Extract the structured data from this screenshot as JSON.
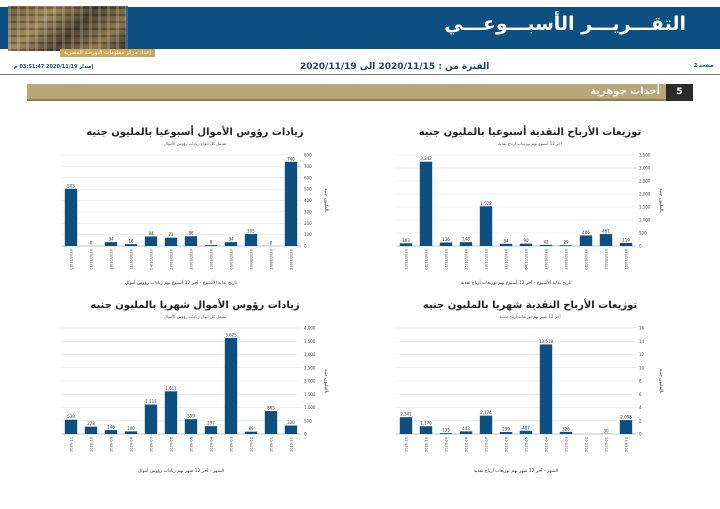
{
  "header": {
    "title": "التقـــريـــر الأسبـــوعـــي",
    "subtitle": "إعداد مركز معلومات البورصة المصرية",
    "page_label": "صفحة 2",
    "period": "الفترة من : 2020/11/15 الى 2020/11/19",
    "issued": "إصدار 2020/11/19 03:51:47 م"
  },
  "section": {
    "number": "5",
    "title": "أحداث جوهرية"
  },
  "chart_data": [
    {
      "id": "dividends-weekly",
      "type": "bar",
      "title": "توزيعات الأرباح النقدية أسبوعيا بالمليون جنيه",
      "subtitle": "آخر 12 أسبوع بهم توزيعات أرباح نقدية",
      "xlabel": "تاريخ بداية الأسبوع - آخر 12 أسبوع بهم توزيعات أرباح نقدية",
      "ylabel": "بالمليون جنيه",
      "ylim": [
        0,
        3500
      ],
      "yticks": [
        0,
        500,
        1000,
        1500,
        2000,
        2500,
        3000,
        3500
      ],
      "yticklabels": [
        "0",
        "500",
        "1,000",
        "1,500",
        "2,000",
        "2,500",
        "3,000",
        "3,500"
      ],
      "categories": [
        "13/11/2020",
        "06/11/2020",
        "01/11/2020",
        "25/10/2020",
        "18/10/2020",
        "11/10/2020",
        "04/10/2020",
        "27/09/2020",
        "20/09/2020",
        "06/09/2020",
        "30/08/2020",
        "16/07/2020"
      ],
      "values": [
        103,
        3242,
        136,
        148,
        1528,
        84,
        90,
        42,
        29,
        406,
        461,
        119
      ],
      "labels": [
        "103",
        "3,242",
        "136",
        "148",
        "1,528",
        "84",
        "90",
        "42",
        "29",
        "406",
        "461",
        "119"
      ],
      "y_axis_side": "right",
      "grid": true
    },
    {
      "id": "capital-weekly",
      "type": "bar",
      "title": "زيادات رؤوس الأموال أسبوعيا بالمليون جنيه",
      "subtitle": "تشمل كل أنواع زيادات رؤوس الأموال",
      "xlabel": "تاريخ بداية الأسبوع - آخر 12 أسبوع بهم زيادات رؤوس أموال",
      "ylabel": "بالمليون جنيه",
      "ylim": [
        0,
        800
      ],
      "yticks": [
        0,
        100,
        200,
        300,
        400,
        500,
        600,
        700,
        800
      ],
      "yticklabels": [
        "0",
        "100",
        "200",
        "300",
        "400",
        "500",
        "600",
        "700",
        "800"
      ],
      "categories": [
        "08/11/2020",
        "01/11/2020",
        "18/10/2020",
        "11/10/2020",
        "04/10/2020",
        "27/09/2020",
        "20/09/2020",
        "13/09/2020",
        "06/09/2020",
        "23/08/2020",
        "16/08/2020",
        "20/07/2020"
      ],
      "values": [
        503,
        0,
        34,
        16,
        84,
        73,
        86,
        8,
        34,
        105,
        0,
        740
      ],
      "labels": [
        "503",
        "0",
        "34",
        "16",
        "84",
        "73",
        "86",
        "8",
        "34",
        "105",
        "0",
        "740"
      ],
      "y_axis_side": "right",
      "grid": true
    },
    {
      "id": "dividends-monthly",
      "type": "bar",
      "title": "توزيعات الأرباح النقدية شهريا بالمليون جنيه",
      "subtitle": "آخر 12 شهر بهم توزيعات أرباح نقدية",
      "xlabel": "الشهر - آخر 12 شهر بهم توزيعات أرباح نقدية",
      "ylabel": "بالمليون جنيه",
      "ylim": [
        0,
        16
      ],
      "yticks": [
        0,
        2,
        4,
        6,
        8,
        10,
        12,
        14,
        16
      ],
      "yticklabels": [
        "0",
        "2",
        "4",
        "6",
        "8",
        "10",
        "12",
        "14",
        "16"
      ],
      "categories": [
        "2020-11",
        "2020-10",
        "2020-09",
        "2020-08",
        "2020-07",
        "2020-06",
        "2020-05",
        "2020-04",
        "2020-03",
        "2020-02",
        "2020-01",
        "2019-12"
      ],
      "values": [
        2.541,
        1.17,
        0.135,
        0.403,
        2.774,
        0.299,
        0.487,
        13.518,
        0.326,
        0,
        0.03,
        2.098
      ],
      "labels": [
        "2,541",
        "1,170",
        "135",
        "403",
        "2,774",
        "299",
        "487",
        "13,518",
        "326",
        "",
        "30",
        "2,098"
      ],
      "y_axis_side": "right",
      "grid": true
    },
    {
      "id": "capital-monthly",
      "type": "bar",
      "title": "زيادات رؤوس الأموال شهريا بالمليون جنيه",
      "subtitle": "تشمل كل أنواع زيادات رؤوس الأموال",
      "xlabel": "الشهر - آخر 12 شهر بهم زيادات رؤوس أموال",
      "ylabel": "بالمليون جنيه",
      "ylim": [
        0,
        4000
      ],
      "yticks": [
        0,
        500,
        1000,
        1500,
        2000,
        2500,
        3000,
        3500,
        4000
      ],
      "yticklabels": [
        "0",
        "500",
        "1,000",
        "1,500",
        "2,000",
        "2,500",
        "3,000",
        "3,500",
        "4,000"
      ],
      "categories": [
        "2020-11",
        "2020-10",
        "2020-09",
        "2020-08",
        "2020-07",
        "2020-06",
        "2020-05",
        "2020-04",
        "2020-03",
        "2020-02",
        "2020-01",
        "2019-11"
      ],
      "values": [
        539,
        278,
        148,
        100,
        1111,
        1611,
        559,
        297,
        3625,
        89,
        865,
        320
      ],
      "labels": [
        "539",
        "278",
        "148",
        "100",
        "1,111",
        "1,611",
        "559",
        "297",
        "3,625",
        "89",
        "865",
        "320"
      ],
      "y_axis_side": "right",
      "grid": true
    }
  ],
  "colors": {
    "bar": "#0d4f80",
    "header": "#0d4f80",
    "section": "#b8a878",
    "gold": "#c9a85a"
  }
}
